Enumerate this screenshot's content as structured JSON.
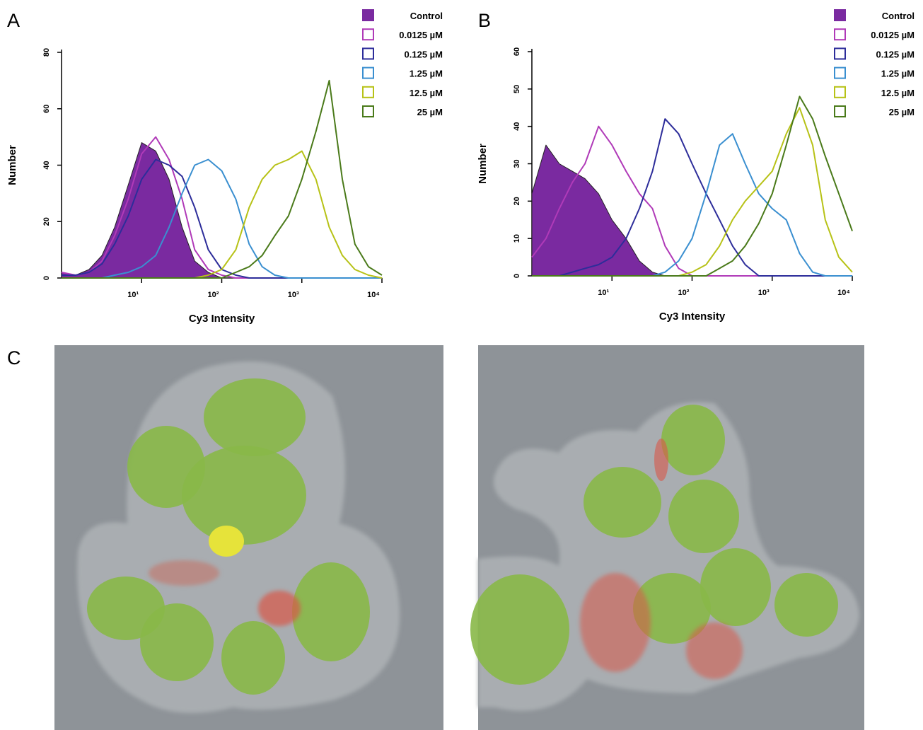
{
  "chart_data": [
    {
      "type": "histogram-line",
      "panel_label": "A",
      "x_label": "Cy3 Intensity",
      "y_label": "Number",
      "x": [
        1,
        1.5,
        2.2,
        3.2,
        4.6,
        6.8,
        10,
        15,
        22,
        32,
        46,
        68,
        100,
        150,
        220,
        320,
        460,
        680,
        1000,
        1500,
        2200,
        3200,
        4600,
        6800,
        10000
      ],
      "xlim": [
        1,
        10000
      ],
      "log_x": true,
      "xticks": [
        {
          "value": 10,
          "label": "10¹"
        },
        {
          "value": 100,
          "label": "10²"
        },
        {
          "value": 1000,
          "label": "10³"
        },
        {
          "value": 10000,
          "label": "10⁴"
        }
      ],
      "ylim": [
        0,
        80
      ],
      "yticks": [
        0,
        20,
        40,
        60,
        80
      ],
      "legend": "upper right",
      "series": [
        {
          "name": "Control",
          "color": "#7a2aa0",
          "filled": true,
          "values": [
            2,
            1,
            3,
            8,
            18,
            33,
            48,
            45,
            35,
            18,
            6,
            2,
            0,
            0,
            0,
            0,
            0,
            0,
            0,
            0,
            0,
            0,
            0,
            0,
            0
          ]
        },
        {
          "name": "0.0125 µM",
          "color": "#b03ab8",
          "filled": false,
          "values": [
            2,
            1,
            2,
            6,
            15,
            28,
            44,
            50,
            42,
            28,
            10,
            3,
            1,
            0,
            0,
            0,
            0,
            0,
            0,
            0,
            0,
            0,
            0,
            0,
            0
          ]
        },
        {
          "name": "0.125 µM",
          "color": "#2d2d9a",
          "filled": false,
          "values": [
            1,
            1,
            2,
            5,
            12,
            22,
            35,
            42,
            40,
            36,
            25,
            10,
            3,
            1,
            0,
            0,
            0,
            0,
            0,
            0,
            0,
            0,
            0,
            0,
            0
          ]
        },
        {
          "name": "1.25 µM",
          "color": "#3a8fd0",
          "filled": false,
          "values": [
            0,
            0,
            0,
            0,
            1,
            2,
            4,
            8,
            18,
            30,
            40,
            42,
            38,
            28,
            12,
            4,
            1,
            0,
            0,
            0,
            0,
            0,
            0,
            0,
            0
          ]
        },
        {
          "name": "12.5 µM",
          "color": "#b7c217",
          "filled": false,
          "values": [
            0,
            0,
            0,
            0,
            0,
            0,
            0,
            0,
            0,
            0,
            0,
            1,
            3,
            10,
            25,
            35,
            40,
            42,
            45,
            35,
            18,
            8,
            3,
            1,
            0
          ]
        },
        {
          "name": "25 µM",
          "color": "#4a7a1a",
          "filled": false,
          "values": [
            0,
            0,
            0,
            0,
            0,
            0,
            0,
            0,
            0,
            0,
            0,
            0,
            0,
            2,
            4,
            8,
            15,
            22,
            35,
            52,
            70,
            35,
            12,
            4,
            1
          ]
        }
      ]
    },
    {
      "type": "histogram-line",
      "panel_label": "B",
      "x_label": "Cy3 Intensity",
      "y_label": "Number",
      "x": [
        1,
        1.5,
        2.2,
        3.2,
        4.6,
        6.8,
        10,
        15,
        22,
        32,
        46,
        68,
        100,
        150,
        220,
        320,
        460,
        680,
        1000,
        1500,
        2200,
        3200,
        4600,
        6800,
        10000
      ],
      "xlim": [
        1,
        10000
      ],
      "log_x": true,
      "xticks": [
        {
          "value": 10,
          "label": "10¹"
        },
        {
          "value": 100,
          "label": "10²"
        },
        {
          "value": 1000,
          "label": "10³"
        },
        {
          "value": 10000,
          "label": "10⁴"
        }
      ],
      "ylim": [
        0,
        60
      ],
      "yticks": [
        0,
        10,
        20,
        30,
        40,
        50,
        60
      ],
      "legend": "upper right",
      "series": [
        {
          "name": "Control",
          "color": "#7a2aa0",
          "filled": true,
          "values": [
            22,
            35,
            30,
            28,
            26,
            22,
            15,
            10,
            4,
            1,
            0,
            0,
            0,
            0,
            0,
            0,
            0,
            0,
            0,
            0,
            0,
            0,
            0,
            0,
            0
          ]
        },
        {
          "name": "0.0125 µM",
          "color": "#b03ab8",
          "filled": false,
          "values": [
            5,
            10,
            18,
            25,
            30,
            40,
            35,
            28,
            22,
            18,
            8,
            2,
            0,
            0,
            0,
            0,
            0,
            0,
            0,
            0,
            0,
            0,
            0,
            0,
            0
          ]
        },
        {
          "name": "0.125 µM",
          "color": "#2d2d9a",
          "filled": false,
          "values": [
            0,
            0,
            0,
            1,
            2,
            3,
            5,
            10,
            18,
            28,
            42,
            38,
            30,
            22,
            15,
            8,
            3,
            0,
            0,
            0,
            0,
            0,
            0,
            0,
            0
          ]
        },
        {
          "name": "1.25 µM",
          "color": "#3a8fd0",
          "filled": false,
          "values": [
            0,
            0,
            0,
            0,
            0,
            0,
            0,
            0,
            0,
            0,
            1,
            4,
            10,
            22,
            35,
            38,
            30,
            22,
            18,
            15,
            6,
            1,
            0,
            0,
            0
          ]
        },
        {
          "name": "12.5 µM",
          "color": "#b7c217",
          "filled": false,
          "values": [
            0,
            0,
            0,
            0,
            0,
            0,
            0,
            0,
            0,
            0,
            0,
            0,
            1,
            3,
            8,
            15,
            20,
            24,
            28,
            38,
            45,
            35,
            15,
            5,
            1
          ]
        },
        {
          "name": "25 µM",
          "color": "#4a7a1a",
          "filled": false,
          "values": [
            0,
            0,
            0,
            0,
            0,
            0,
            0,
            0,
            0,
            0,
            0,
            0,
            0,
            0,
            2,
            4,
            8,
            14,
            22,
            35,
            48,
            42,
            32,
            22,
            12
          ]
        }
      ]
    }
  ],
  "panel_c": {
    "label": "C"
  }
}
